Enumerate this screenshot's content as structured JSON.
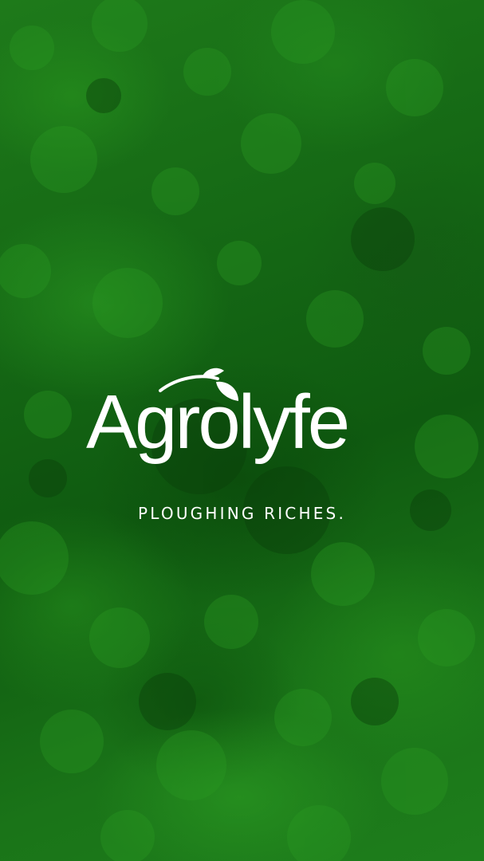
{
  "brand": {
    "name": "Agrolyfe",
    "logo_icon": "leaf-sprout-icon",
    "tagline": "PLOUGHING RICHES."
  },
  "colors": {
    "background": "#146614",
    "foreground": "#ffffff"
  }
}
